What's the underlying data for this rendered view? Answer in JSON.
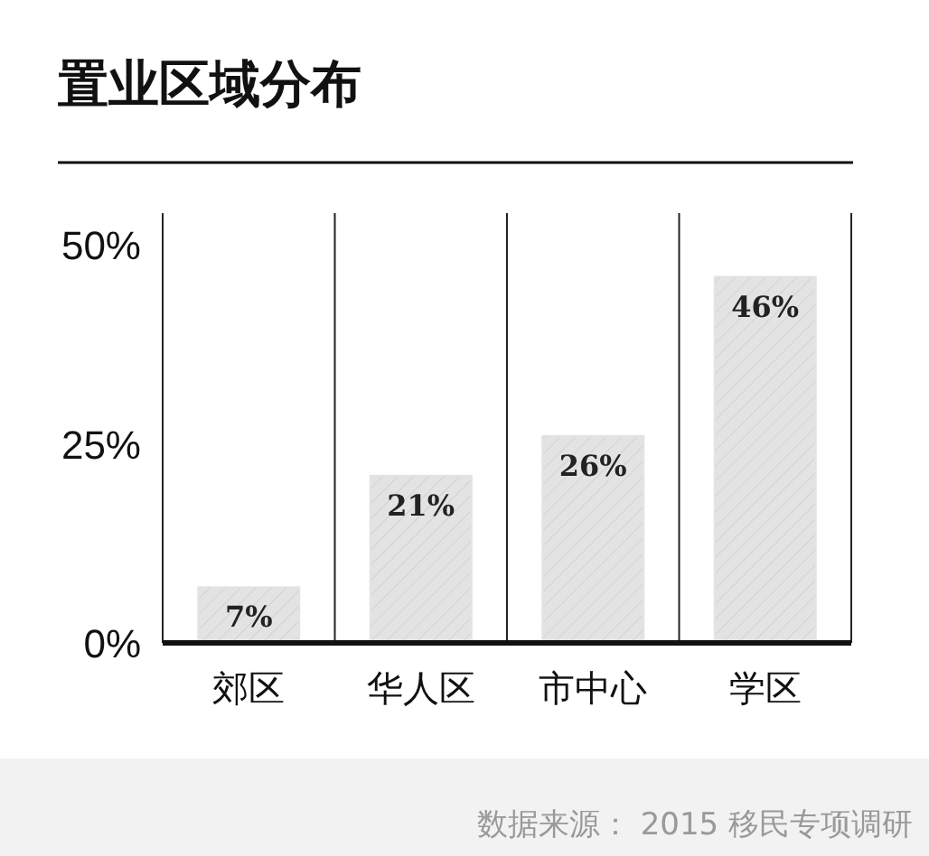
{
  "chart_data": {
    "type": "bar",
    "title": "置业区域分布",
    "categories": [
      "郊区",
      "华人区",
      "市中心",
      "学区"
    ],
    "values": [
      7,
      21,
      26,
      46
    ],
    "value_labels": [
      "7%",
      "21%",
      "26%",
      "46%"
    ],
    "color": "#e3e3e3",
    "ylim": [
      0,
      54
    ],
    "yticks": [
      {
        "value": 0,
        "label": "0%"
      },
      {
        "value": 25,
        "label": "25%"
      },
      {
        "value": 50,
        "label": "50%"
      }
    ],
    "annotations": [
      "数据来源： 2015 移民专项调研"
    ]
  }
}
